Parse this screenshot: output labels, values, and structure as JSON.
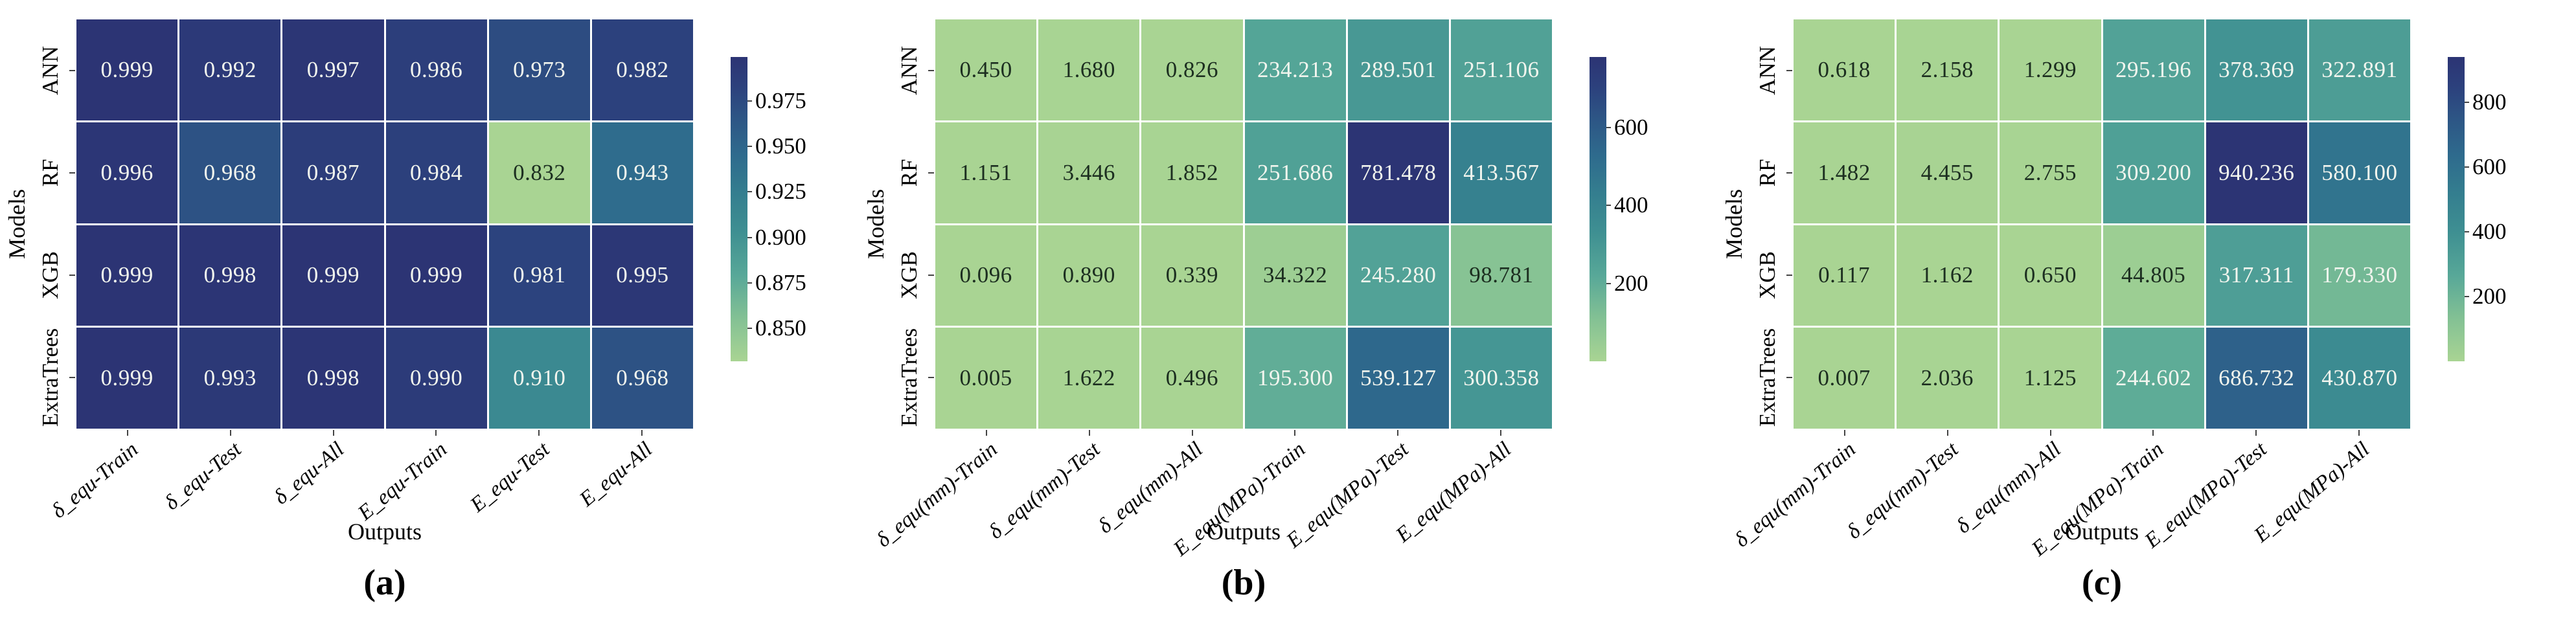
{
  "chart_data": [
    {
      "type": "heatmap",
      "caption": "(a)",
      "xlabel": "Outputs",
      "ylabel": "Models",
      "rows": [
        "ANN",
        "RF",
        "XGB",
        "ExtraTrees"
      ],
      "columns": [
        "δ_equ-Train",
        "δ_equ-Test",
        "δ_equ-All",
        "E_equ-Train",
        "E_equ-Test",
        "E_equ-All"
      ],
      "values": [
        [
          "0.999",
          "0.992",
          "0.997",
          "0.986",
          "0.973",
          "0.982"
        ],
        [
          "0.996",
          "0.968",
          "0.987",
          "0.984",
          "0.832",
          "0.943"
        ],
        [
          "0.999",
          "0.998",
          "0.999",
          "0.999",
          "0.981",
          "0.995"
        ],
        [
          "0.999",
          "0.993",
          "0.998",
          "0.990",
          "0.910",
          "0.968"
        ]
      ],
      "colorbar_ticks": [
        "0.975",
        "0.950",
        "0.925",
        "0.900",
        "0.875",
        "0.850"
      ],
      "legend_position": "right",
      "grid": false
    },
    {
      "type": "heatmap",
      "caption": "(b)",
      "xlabel": "Outputs",
      "ylabel": "Models",
      "rows": [
        "ANN",
        "RF",
        "XGB",
        "ExtraTrees"
      ],
      "columns": [
        "δ_equ(mm)-Train",
        "δ_equ(mm)-Test",
        "δ_equ(mm)-All",
        "E_equ(MPa)-Train",
        "E_equ(MPa)-Test",
        "E_equ(MPa)-All"
      ],
      "values": [
        [
          "0.450",
          "1.680",
          "0.826",
          "234.213",
          "289.501",
          "251.106"
        ],
        [
          "1.151",
          "3.446",
          "1.852",
          "251.686",
          "781.478",
          "413.567"
        ],
        [
          "0.096",
          "0.890",
          "0.339",
          "34.322",
          "245.280",
          "98.781"
        ],
        [
          "0.005",
          "1.622",
          "0.496",
          "195.300",
          "539.127",
          "300.358"
        ]
      ],
      "colorbar_ticks": [
        "600",
        "400",
        "200"
      ],
      "legend_position": "right",
      "grid": false
    },
    {
      "type": "heatmap",
      "caption": "(c)",
      "xlabel": "Outputs",
      "ylabel": "Models",
      "rows": [
        "ANN",
        "RF",
        "XGB",
        "ExtraTrees"
      ],
      "columns": [
        "δ_equ(mm)-Train",
        "δ_equ(mm)-Test",
        "δ_equ(mm)-All",
        "E_equ(MPa)-Train",
        "E_equ(MPa)-Test",
        "E_equ(MPa)-All"
      ],
      "values": [
        [
          "0.618",
          "2.158",
          "1.299",
          "295.196",
          "378.369",
          "322.891"
        ],
        [
          "1.482",
          "4.455",
          "2.755",
          "309.200",
          "940.236",
          "580.100"
        ],
        [
          "0.117",
          "1.162",
          "0.650",
          "44.805",
          "317.311",
          "179.330"
        ],
        [
          "0.007",
          "2.036",
          "1.125",
          "244.602",
          "686.732",
          "430.870"
        ]
      ],
      "colorbar_ticks": [
        "800",
        "600",
        "400",
        "200"
      ],
      "legend_position": "right",
      "grid": false
    }
  ],
  "style": {
    "colormap_stops": [
      [
        0.0,
        "#a9d493"
      ],
      [
        0.14,
        "#83c194"
      ],
      [
        0.28,
        "#58a898"
      ],
      [
        0.42,
        "#3f9092"
      ],
      [
        0.55,
        "#347e8f"
      ],
      [
        0.68,
        "#2e6a8d"
      ],
      [
        0.8,
        "#2d5585"
      ],
      [
        0.9,
        "#2c417d"
      ],
      [
        1.0,
        "#2c3474"
      ]
    ],
    "cell_text_dark": "#1c2e20",
    "cell_text_light": "#f2f5ee",
    "label_color": "#000000",
    "background": "#ffffff"
  }
}
